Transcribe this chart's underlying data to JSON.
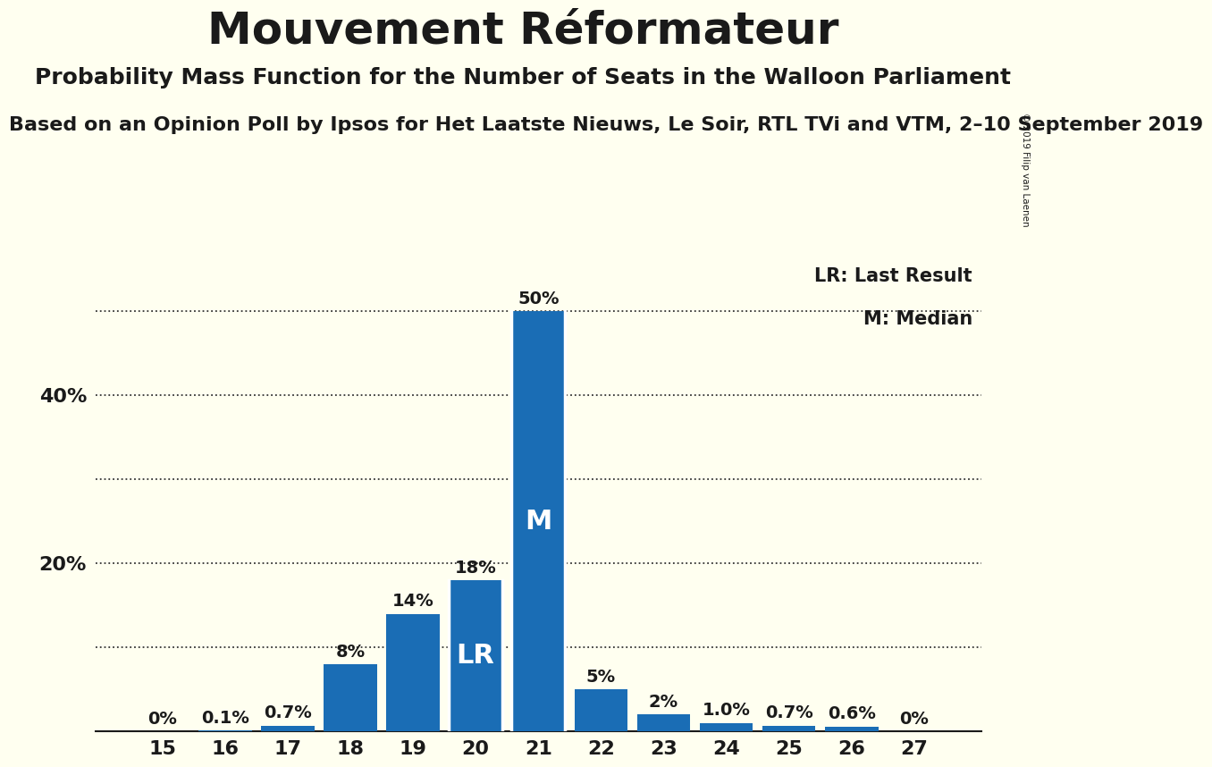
{
  "title": "Mouvement Réformateur",
  "subtitle": "Probability Mass Function for the Number of Seats in the Walloon Parliament",
  "subtitle2": "Based on an Opinion Poll by Ipsos for Het Laatste Nieuws, Le Soir, RTL TVi and VTM, 2–10 September 2019",
  "copyright": "© 2019 Filip van Laenen",
  "categories": [
    15,
    16,
    17,
    18,
    19,
    20,
    21,
    22,
    23,
    24,
    25,
    26,
    27
  ],
  "values": [
    0.0,
    0.1,
    0.7,
    8.0,
    14.0,
    18.0,
    50.0,
    5.0,
    2.0,
    1.0,
    0.7,
    0.6,
    0.0
  ],
  "value_labels": [
    "0%",
    "0.1%",
    "0.7%",
    "8%",
    "14%",
    "18%",
    "50%",
    "5%",
    "2%",
    "1.0%",
    "0.7%",
    "0.6%",
    "0%"
  ],
  "bar_color": "#1a6db5",
  "background_color": "#FFFFF0",
  "lr_bar": 20,
  "median_bar": 21,
  "lr_label": "LR",
  "median_label": "M",
  "legend_lr": "LR: Last Result",
  "legend_m": "M: Median",
  "ylim": [
    0,
    57
  ],
  "title_fontsize": 36,
  "subtitle_fontsize": 18,
  "subtitle2_fontsize": 16,
  "label_fontsize": 14,
  "bar_label_fontsize": 22,
  "tick_fontsize": 16
}
